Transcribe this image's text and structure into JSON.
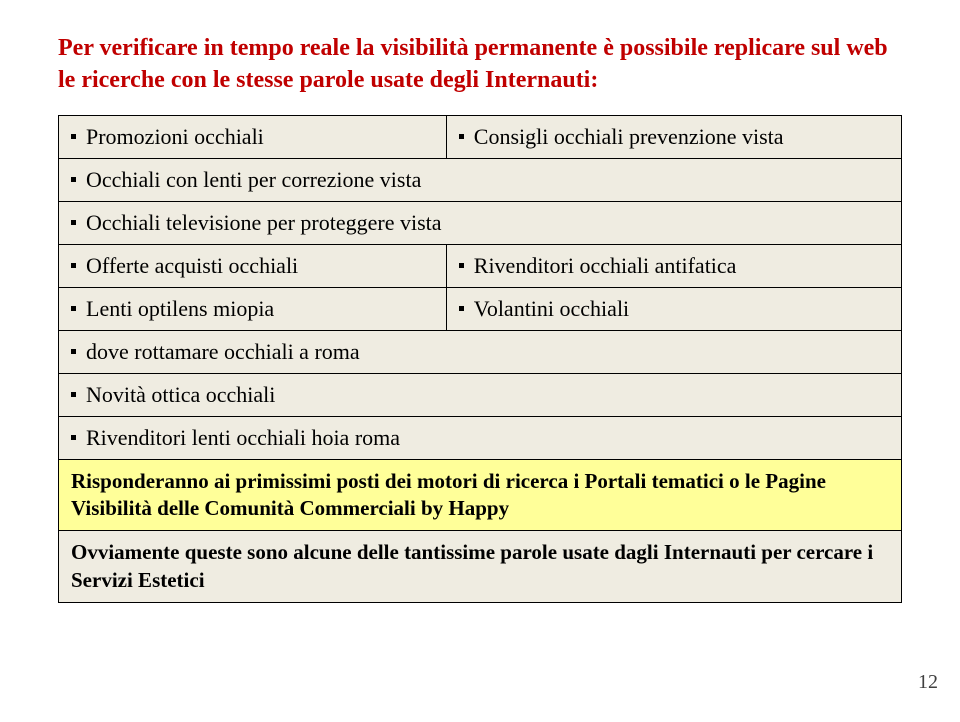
{
  "heading": "Per verificare in tempo reale la visibilità permanente è possibile replicare sul web le ricerche con le stesse parole usate degli Internauti:",
  "rows": [
    {
      "type": "pair",
      "left": "Promozioni occhiali",
      "right": "Consigli occhiali prevenzione vista"
    },
    {
      "type": "full",
      "text": "Occhiali con lenti per correzione vista"
    },
    {
      "type": "full",
      "text": "Occhiali televisione per proteggere vista"
    },
    {
      "type": "pair",
      "left": "Offerte acquisti occhiali",
      "right": "Rivenditori occhiali antifatica"
    },
    {
      "type": "pair",
      "left": "Lenti optilens miopia",
      "right": "Volantini occhiali"
    },
    {
      "type": "full",
      "text": "dove rottamare occhiali a roma"
    },
    {
      "type": "full",
      "text": "Novità  ottica  occhiali"
    },
    {
      "type": "full",
      "text": "Rivenditori lenti occhiali hoia roma"
    }
  ],
  "highlight": "Risponderanno ai primissimi posti dei motori di ricerca i Portali tematici o le Pagine Visibilità delle Comunità Commerciali by Happy",
  "summary": "Ovviamente queste sono alcune delle tantissime parole usate dagli Internauti per cercare i Servizi Estetici",
  "page_number": "12"
}
